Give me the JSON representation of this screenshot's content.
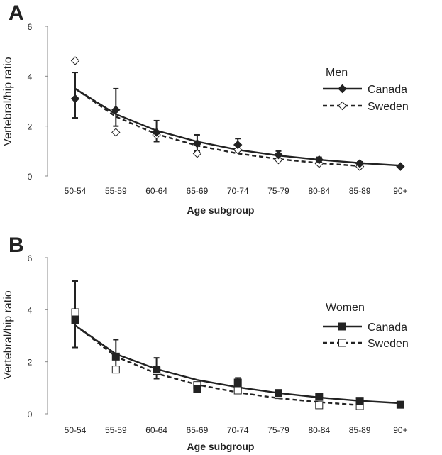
{
  "chart_data": [
    {
      "panel": "A",
      "type": "line",
      "xlabel": "Age subgroup",
      "ylabel": "Vertebral/hip ratio",
      "ylim": [
        0,
        6
      ],
      "yticks": [
        "0",
        "2",
        "4",
        "6"
      ],
      "categories": [
        "50-54",
        "55-59",
        "60-64",
        "65-69",
        "70-74",
        "75-79",
        "80-84",
        "85-89",
        "90+"
      ],
      "legend_title": "Men",
      "legend_position": "right",
      "series": [
        {
          "name": "Canada",
          "marker": "filled-diamond",
          "line": "solid",
          "values": [
            3.1,
            2.65,
            1.75,
            1.3,
            1.25,
            0.85,
            0.65,
            0.5,
            0.38
          ],
          "err_low": [
            2.33,
            2.0,
            1.38,
            1.0,
            1.0,
            0.7,
            0.55,
            0.45,
            null
          ],
          "err_high": [
            4.15,
            3.5,
            2.22,
            1.65,
            1.5,
            1.0,
            0.75,
            0.57,
            null
          ],
          "fit": [
            3.5,
            2.48,
            1.82,
            1.38,
            1.05,
            0.82,
            0.65,
            0.52,
            0.42
          ]
        },
        {
          "name": "Sweden",
          "marker": "open-diamond",
          "line": "dashed",
          "values": [
            4.62,
            1.75,
            1.65,
            0.9,
            1.05,
            0.65,
            0.5,
            0.38,
            null
          ],
          "fit": [
            3.5,
            2.38,
            1.68,
            1.22,
            0.9,
            0.68,
            0.52,
            0.4,
            null
          ]
        }
      ]
    },
    {
      "panel": "B",
      "type": "line",
      "xlabel": "Age subgroup",
      "ylabel": "Vertebral/hip ratio",
      "ylim": [
        0,
        6
      ],
      "yticks": [
        "0",
        "2",
        "4",
        "6"
      ],
      "categories": [
        "50-54",
        "55-59",
        "60-64",
        "65-69",
        "70-74",
        "75-79",
        "80-84",
        "85-89",
        "90+"
      ],
      "legend_title": "Women",
      "legend_position": "right",
      "series": [
        {
          "name": "Canada",
          "marker": "filled-square",
          "line": "solid",
          "values": [
            3.6,
            2.2,
            1.7,
            0.95,
            1.2,
            0.8,
            0.65,
            0.5,
            0.35
          ],
          "err_low": [
            2.55,
            1.75,
            1.35,
            0.88,
            1.05,
            0.7,
            0.6,
            0.45,
            null
          ],
          "err_high": [
            5.1,
            2.85,
            2.15,
            1.15,
            1.38,
            0.9,
            0.75,
            0.55,
            null
          ],
          "fit": [
            3.4,
            2.3,
            1.72,
            1.3,
            1.02,
            0.8,
            0.63,
            0.5,
            0.41
          ]
        },
        {
          "name": "Sweden",
          "marker": "open-square",
          "line": "dashed",
          "values": [
            3.9,
            1.7,
            1.65,
            1.1,
            0.9,
            0.72,
            0.33,
            0.3,
            null
          ],
          "fit": [
            3.4,
            2.2,
            1.55,
            1.12,
            0.82,
            0.6,
            0.45,
            0.33,
            null
          ]
        }
      ]
    }
  ]
}
